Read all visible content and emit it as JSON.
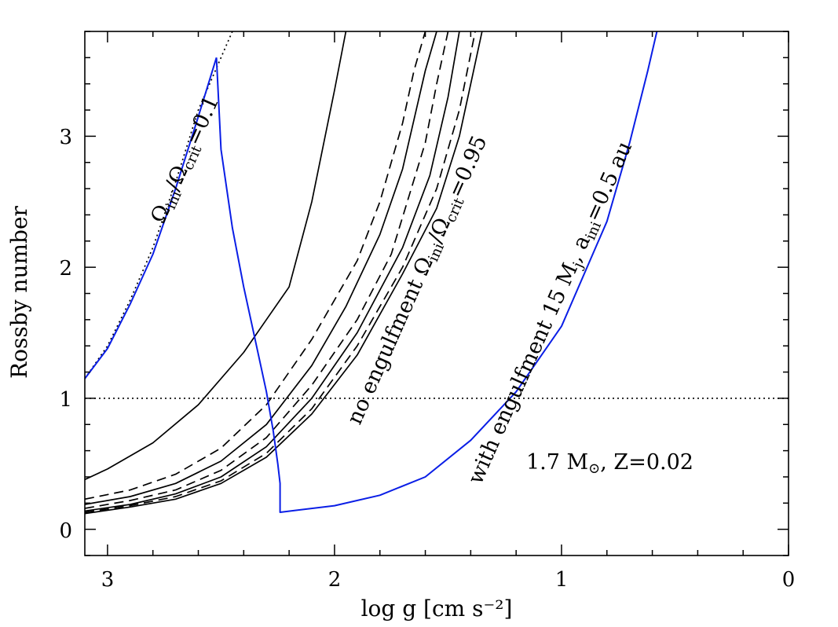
{
  "chart_data": {
    "type": "line",
    "xlabel": "log g [cm s⁻²]",
    "ylabel": "Rossby number",
    "xlim": [
      3.1,
      0
    ],
    "ylim": [
      -0.2,
      3.8
    ],
    "x_ticks": [
      3,
      2,
      1,
      0
    ],
    "x_tick_labels": [
      "3",
      "2",
      "1",
      "0"
    ],
    "y_ticks": [
      0,
      1,
      2,
      3
    ],
    "y_tick_labels": [
      "0",
      "1",
      "2",
      "3"
    ],
    "reference_line": {
      "name": "rossby-one",
      "y": 1,
      "style": "dotted"
    },
    "annotations": {
      "slow_rotation": {
        "base": "Ω",
        "sub1": "ini",
        "mid": "/Ω",
        "sub2": "crit",
        "tail": "=0.1"
      },
      "no_engulfment": {
        "base": "no engulfment Ω",
        "sub1": "ini",
        "mid": "/Ω",
        "sub2": "crit",
        "tail": "=0.95"
      },
      "with_engulfment": {
        "base": "with engulfment 15 M",
        "sub1": "j",
        "mid": ",  a",
        "sub2": "ini",
        "tail": "=0.5 au"
      },
      "model": {
        "text1": "1.7 M",
        "text2": ",  Z=0.02",
        "symbol": "⊙"
      }
    },
    "colors": {
      "black": "#000000",
      "blue": "#0a1ee6"
    },
    "series": [
      {
        "name": "no-engulfment-1",
        "color": "#000000",
        "dash": "solid",
        "x": [
          3.1,
          3.0,
          2.8,
          2.6,
          2.4,
          2.3,
          2.2,
          2.1,
          2.0,
          1.95
        ],
        "y": [
          0.38,
          0.46,
          0.66,
          0.95,
          1.35,
          1.6,
          1.85,
          2.5,
          3.35,
          3.8
        ]
      },
      {
        "name": "no-engulfment-2",
        "color": "#000000",
        "dash": "dashed",
        "x": [
          3.1,
          2.9,
          2.7,
          2.5,
          2.3,
          2.1,
          1.9,
          1.8,
          1.7,
          1.65,
          1.6
        ],
        "y": [
          0.23,
          0.3,
          0.42,
          0.62,
          0.95,
          1.45,
          2.05,
          2.5,
          3.1,
          3.5,
          3.8
        ]
      },
      {
        "name": "no-engulfment-3",
        "color": "#000000",
        "dash": "solid",
        "x": [
          3.1,
          2.9,
          2.7,
          2.5,
          2.3,
          2.1,
          1.95,
          1.8,
          1.7,
          1.6,
          1.55
        ],
        "y": [
          0.19,
          0.25,
          0.35,
          0.52,
          0.8,
          1.25,
          1.7,
          2.25,
          2.75,
          3.5,
          3.8
        ]
      },
      {
        "name": "no-engulfment-4",
        "color": "#000000",
        "dash": "dashed",
        "x": [
          3.1,
          2.9,
          2.7,
          2.5,
          2.3,
          2.1,
          1.9,
          1.75,
          1.6,
          1.55,
          1.5
        ],
        "y": [
          0.16,
          0.22,
          0.3,
          0.45,
          0.7,
          1.1,
          1.6,
          2.1,
          2.95,
          3.4,
          3.8
        ]
      },
      {
        "name": "no-engulfment-5",
        "color": "#000000",
        "dash": "solid",
        "x": [
          3.1,
          2.9,
          2.7,
          2.5,
          2.3,
          2.1,
          1.9,
          1.7,
          1.58,
          1.5,
          1.45
        ],
        "y": [
          0.14,
          0.19,
          0.27,
          0.4,
          0.63,
          1.0,
          1.5,
          2.15,
          2.7,
          3.3,
          3.8
        ]
      },
      {
        "name": "no-engulfment-6",
        "color": "#000000",
        "dash": "dashed",
        "x": [
          3.1,
          2.9,
          2.7,
          2.5,
          2.3,
          2.1,
          1.9,
          1.7,
          1.55,
          1.45,
          1.38
        ],
        "y": [
          0.13,
          0.18,
          0.25,
          0.37,
          0.58,
          0.92,
          1.4,
          2.0,
          2.6,
          3.2,
          3.8
        ]
      },
      {
        "name": "no-engulfment-7",
        "color": "#000000",
        "dash": "solid",
        "x": [
          3.1,
          2.9,
          2.7,
          2.5,
          2.3,
          2.1,
          1.9,
          1.7,
          1.55,
          1.45,
          1.4,
          1.35
        ],
        "y": [
          0.12,
          0.17,
          0.23,
          0.35,
          0.55,
          0.88,
          1.33,
          1.95,
          2.45,
          3.0,
          3.4,
          3.8
        ]
      },
      {
        "name": "slow-rotation-model",
        "color": "#000000",
        "dash": "dotted",
        "x": [
          3.1,
          3.0,
          2.9,
          2.8,
          2.7,
          2.6,
          2.5,
          2.45
        ],
        "y": [
          1.15,
          1.4,
          1.75,
          2.15,
          2.65,
          3.2,
          3.6,
          3.8
        ]
      },
      {
        "name": "slow-rotation-model-blue",
        "color": "#0a1ee6",
        "dash": "solid",
        "x": [
          3.1,
          3.0,
          2.9,
          2.8,
          2.7,
          2.6,
          2.52
        ],
        "y": [
          1.15,
          1.38,
          1.72,
          2.1,
          2.6,
          3.15,
          3.6
        ]
      },
      {
        "name": "engulfment-model",
        "color": "#0a1ee6",
        "dash": "solid",
        "x": [
          2.52,
          2.5,
          2.45,
          2.4,
          2.35,
          2.3,
          2.27,
          2.25,
          2.24,
          2.24,
          2.0,
          1.8,
          1.6,
          1.4,
          1.2,
          1.0,
          0.8,
          0.7,
          0.62,
          0.58
        ],
        "y": [
          3.6,
          2.9,
          2.3,
          1.85,
          1.45,
          1.05,
          0.75,
          0.5,
          0.35,
          0.13,
          0.18,
          0.26,
          0.4,
          0.68,
          1.05,
          1.55,
          2.35,
          2.95,
          3.5,
          3.8
        ]
      }
    ]
  }
}
